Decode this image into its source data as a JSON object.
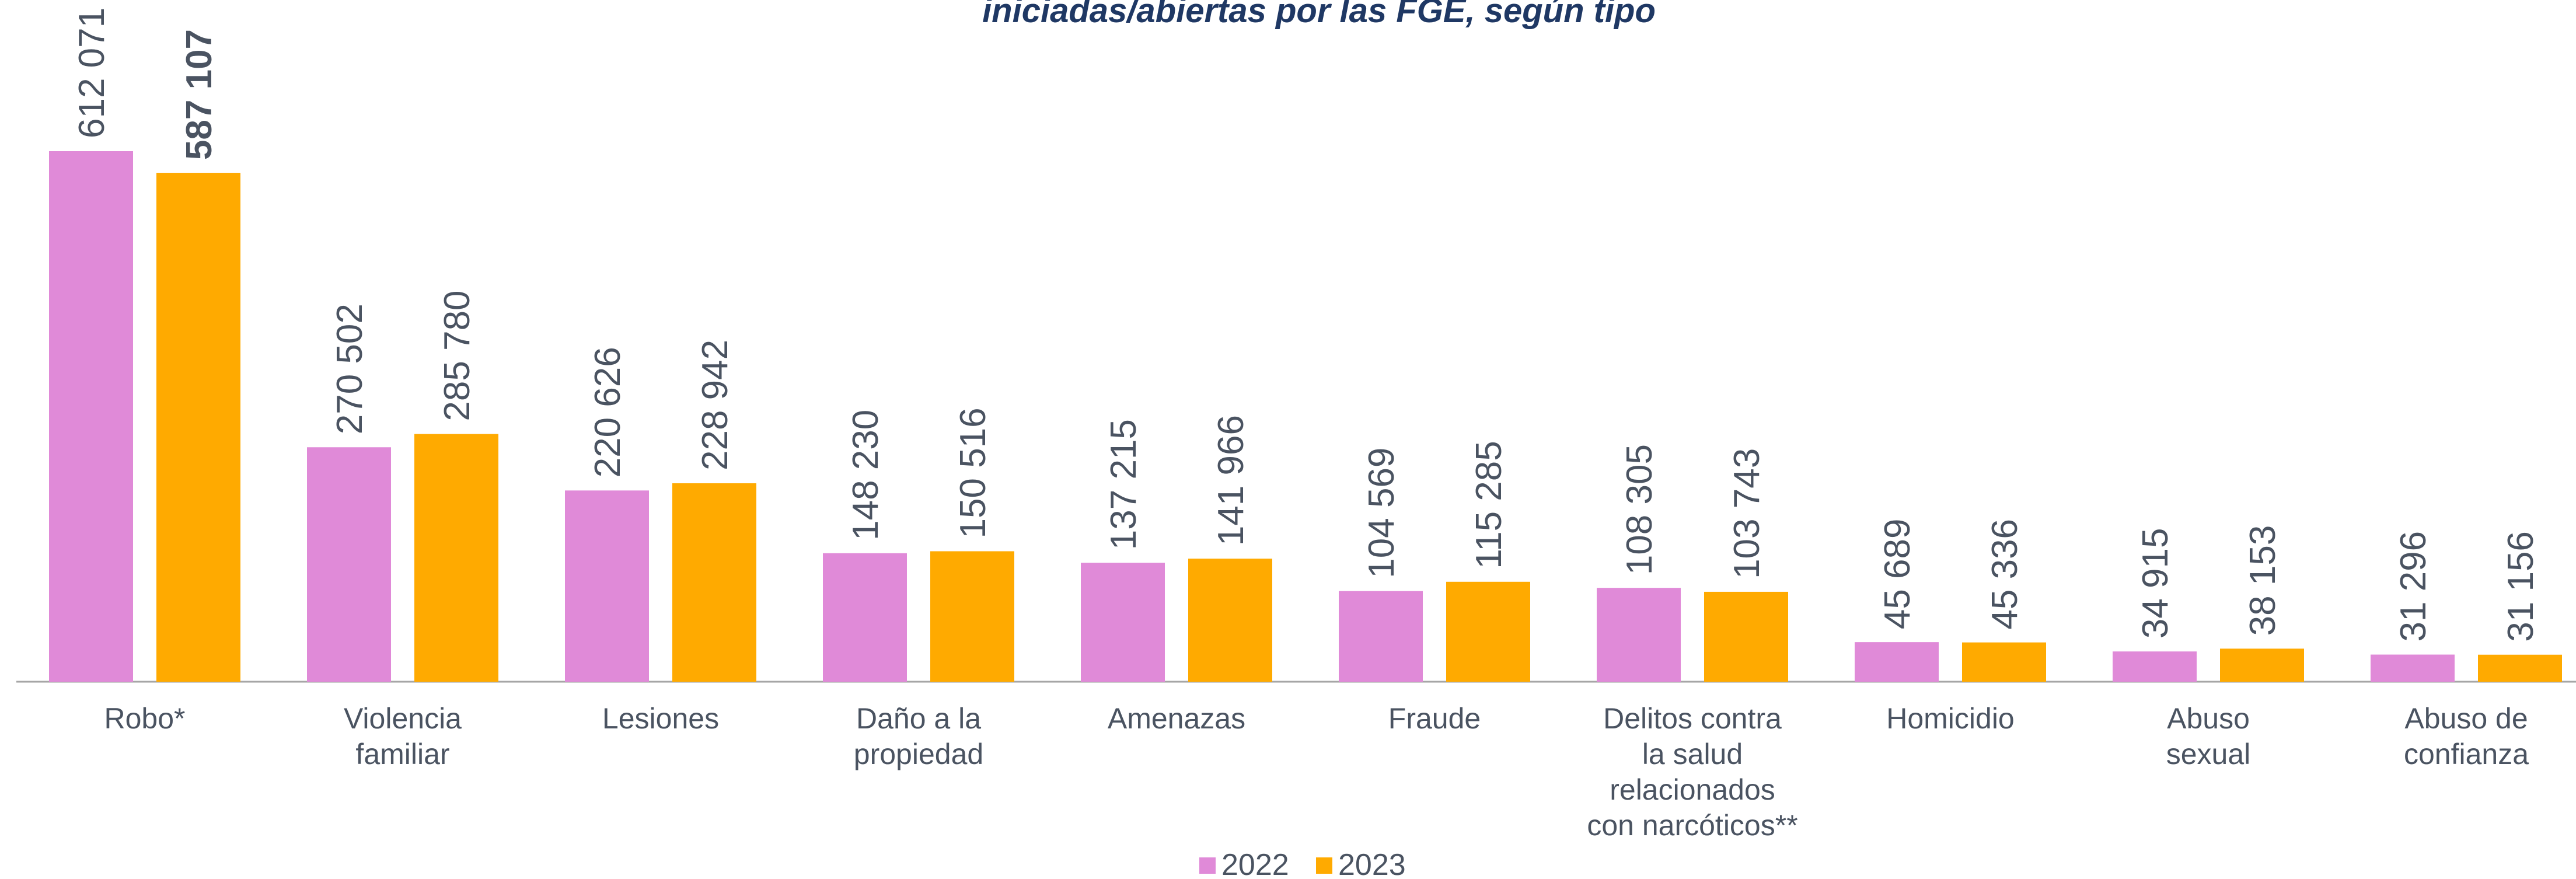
{
  "chart_data": {
    "type": "bar",
    "title": "iniciadas/abiertas por las FGE, según tipo",
    "categories": [
      [
        "Robo*"
      ],
      [
        "Violencia",
        "familiar"
      ],
      [
        "Lesiones"
      ],
      [
        "Daño a la",
        "propiedad"
      ],
      [
        "Amenazas"
      ],
      [
        "Fraude"
      ],
      [
        "Delitos contra",
        "la salud",
        "relacionados",
        "con narcóticos**"
      ],
      [
        "Homicidio"
      ],
      [
        "Abuso",
        "sexual"
      ],
      [
        "Abuso de",
        "confianza"
      ]
    ],
    "series": [
      {
        "name": "2022",
        "color": "#e08ad8",
        "values": [
          612071,
          270502,
          220626,
          148230,
          137215,
          104569,
          108305,
          45689,
          34915,
          31296
        ],
        "value_labels": [
          "612 071",
          "270 502",
          "220 626",
          "148 230",
          "137 215",
          "104 569",
          "108 305",
          "45 689",
          "34 915",
          "31 296"
        ]
      },
      {
        "name": "2023",
        "color": "#ffaa00",
        "values": [
          587107,
          285780,
          228942,
          150516,
          141966,
          115285,
          103743,
          45336,
          38153,
          31156
        ],
        "value_labels": [
          "587 107",
          "285 780",
          "228 942",
          "150 516",
          "141 966",
          "115 285",
          "103 743",
          "45 336",
          "38 153",
          "31 156"
        ]
      }
    ],
    "highlight": {
      "series": 1,
      "index": 0
    },
    "legend": "bottom"
  }
}
